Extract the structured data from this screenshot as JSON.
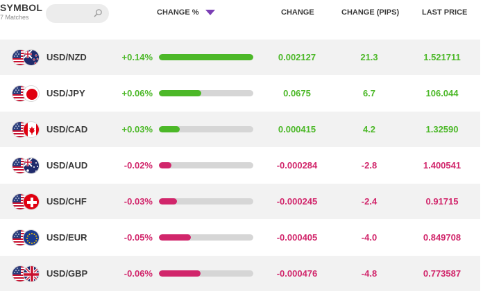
{
  "header": {
    "symbol_label": "SYMBOL",
    "matches_label": "7 Matches",
    "search_icon": "search-icon",
    "change_pct_label": "CHANGE %",
    "change_label": "CHANGE",
    "pips_label": "CHANGE (PIPS)",
    "last_price_label": "LAST PRICE",
    "sort_icon": "sort-down-icon"
  },
  "colors": {
    "positive": "#4cb828",
    "negative": "#d1266b",
    "bar_track": "#d6d6d6",
    "accent": "#7b3fb5"
  },
  "rows": [
    {
      "pair": "USD/NZD",
      "quote_flag": "nzd-flag-icon",
      "pct": "+0.14%",
      "bar_fraction": 1.0,
      "direction": "up",
      "change": "0.002127",
      "pips": "21.3",
      "last": "1.521711"
    },
    {
      "pair": "USD/JPY",
      "quote_flag": "jpy-flag-icon",
      "pct": "+0.06%",
      "bar_fraction": 0.45,
      "direction": "up",
      "change": "0.0675",
      "pips": "6.7",
      "last": "106.044"
    },
    {
      "pair": "USD/CAD",
      "quote_flag": "cad-flag-icon",
      "pct": "+0.03%",
      "bar_fraction": 0.22,
      "direction": "up",
      "change": "0.000415",
      "pips": "4.2",
      "last": "1.32590"
    },
    {
      "pair": "USD/AUD",
      "quote_flag": "aud-flag-icon",
      "pct": "-0.02%",
      "bar_fraction": 0.13,
      "direction": "down",
      "change": "-0.000284",
      "pips": "-2.8",
      "last": "1.400541"
    },
    {
      "pair": "USD/CHF",
      "quote_flag": "chf-flag-icon",
      "pct": "-0.03%",
      "bar_fraction": 0.19,
      "direction": "down",
      "change": "-0.000245",
      "pips": "-2.4",
      "last": "0.91715"
    },
    {
      "pair": "USD/EUR",
      "quote_flag": "eur-flag-icon",
      "pct": "-0.05%",
      "bar_fraction": 0.34,
      "direction": "down",
      "change": "-0.000405",
      "pips": "-4.0",
      "last": "0.849708"
    },
    {
      "pair": "USD/GBP",
      "quote_flag": "gbp-flag-icon",
      "pct": "-0.06%",
      "bar_fraction": 0.44,
      "direction": "down",
      "change": "-0.000476",
      "pips": "-4.8",
      "last": "0.773587"
    }
  ]
}
